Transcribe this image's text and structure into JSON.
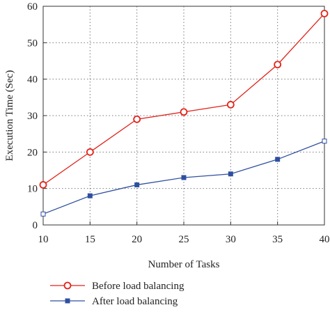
{
  "chart_data": {
    "type": "line",
    "xlabel": "Number of Tasks",
    "ylabel": "Execution Time (Sec)",
    "x": [
      10,
      15,
      20,
      25,
      30,
      35,
      40
    ],
    "xlim": [
      10,
      40
    ],
    "ylim": [
      0,
      60
    ],
    "xticks": [
      10,
      15,
      20,
      25,
      30,
      35,
      40
    ],
    "yticks": [
      0,
      10,
      20,
      30,
      40,
      50,
      60
    ],
    "grid": true,
    "legend_position": "bottom-center",
    "series": [
      {
        "name": "Before load balancing",
        "color": "#e2231a",
        "marker": "circle",
        "values": [
          11,
          20,
          29,
          31,
          33,
          44,
          58
        ]
      },
      {
        "name": "After load balancing",
        "color": "#2f4fa0",
        "marker": "square",
        "values": [
          3,
          8,
          11,
          13,
          14,
          18,
          23
        ]
      }
    ]
  }
}
